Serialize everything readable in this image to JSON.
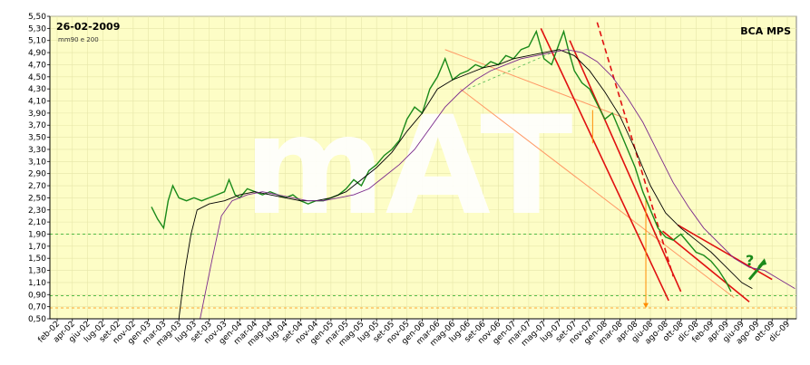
{
  "chart_data": {
    "type": "line",
    "date_label": "26-02-2009",
    "symbol": "BCA MPS",
    "indicator_label": "mm90 e 200",
    "watermark": "mAT",
    "question_mark": "?",
    "ylim": [
      0.5,
      5.5
    ],
    "y_ticks": [
      "0,50",
      "0,70",
      "0,90",
      "1,10",
      "1,30",
      "1,50",
      "1,70",
      "1,90",
      "2,10",
      "2,30",
      "2,50",
      "2,70",
      "2,90",
      "3,10",
      "3,30",
      "3,50",
      "3,70",
      "3,90",
      "4,10",
      "4,30",
      "4,50",
      "4,70",
      "4,90",
      "5,10",
      "5,30",
      "5,50"
    ],
    "x_ticks": [
      "feb-02",
      "apr-02",
      "giu-02",
      "lug-02",
      "set-02",
      "nov-02",
      "gen-03",
      "mar-03",
      "mag-03",
      "lug-03",
      "set-03",
      "nov-03",
      "gen-04",
      "mar-04",
      "mag-04",
      "lug-04",
      "set-04",
      "nov-04",
      "gen-05",
      "mar-05",
      "mag-05",
      "lug-05",
      "set-05",
      "nov-05",
      "gen-06",
      "mar-06",
      "mag-06",
      "lug-06",
      "set-06",
      "nov-06",
      "gen-07",
      "mar-07",
      "mag-07",
      "lug-07",
      "set-07",
      "nov-07",
      "gen-08",
      "mar-08",
      "apr-08",
      "giu-08",
      "ago-08",
      "ott-08",
      "dic-08",
      "feb-09",
      "apr-09",
      "giu-09",
      "ago-09",
      "ott-09",
      "dic-09"
    ],
    "series": [
      {
        "values": [
          [
            6.2,
            2.35
          ],
          [
            6.6,
            2.15
          ],
          [
            7.0,
            2.0
          ],
          [
            7.3,
            2.45
          ],
          [
            7.6,
            2.7
          ],
          [
            8.0,
            2.5
          ],
          [
            8.5,
            2.45
          ],
          [
            9.0,
            2.5
          ],
          [
            9.5,
            2.45
          ],
          [
            10.0,
            2.5
          ],
          [
            10.5,
            2.55
          ],
          [
            11.0,
            2.6
          ],
          [
            11.3,
            2.8
          ],
          [
            11.7,
            2.55
          ],
          [
            12.0,
            2.5
          ],
          [
            12.5,
            2.65
          ],
          [
            13.0,
            2.6
          ],
          [
            13.5,
            2.55
          ],
          [
            14.0,
            2.6
          ],
          [
            14.5,
            2.55
          ],
          [
            15.0,
            2.5
          ],
          [
            15.5,
            2.55
          ],
          [
            16.0,
            2.45
          ],
          [
            16.5,
            2.4
          ],
          [
            17.0,
            2.45
          ],
          [
            17.5,
            2.45
          ],
          [
            18.0,
            2.5
          ],
          [
            18.5,
            2.55
          ],
          [
            19.0,
            2.65
          ],
          [
            19.5,
            2.8
          ],
          [
            20.0,
            2.7
          ],
          [
            20.5,
            2.95
          ],
          [
            21.0,
            3.05
          ],
          [
            21.5,
            3.2
          ],
          [
            22.0,
            3.3
          ],
          [
            22.5,
            3.45
          ],
          [
            23.0,
            3.8
          ],
          [
            23.5,
            4.0
          ],
          [
            24.0,
            3.9
          ],
          [
            24.5,
            4.3
          ],
          [
            25.0,
            4.5
          ],
          [
            25.5,
            4.8
          ],
          [
            26.0,
            4.45
          ],
          [
            26.5,
            4.55
          ],
          [
            27.0,
            4.6
          ],
          [
            27.5,
            4.7
          ],
          [
            28.0,
            4.65
          ],
          [
            28.5,
            4.75
          ],
          [
            29.0,
            4.7
          ],
          [
            29.5,
            4.85
          ],
          [
            30.0,
            4.8
          ],
          [
            30.5,
            4.95
          ],
          [
            31.0,
            5.0
          ],
          [
            31.5,
            5.25
          ],
          [
            32.0,
            4.8
          ],
          [
            32.5,
            4.7
          ],
          [
            33.0,
            5.05
          ],
          [
            33.3,
            5.25
          ],
          [
            33.6,
            4.95
          ],
          [
            34.0,
            4.6
          ],
          [
            34.5,
            4.4
          ],
          [
            35.0,
            4.3
          ],
          [
            35.5,
            4.05
          ],
          [
            36.0,
            3.8
          ],
          [
            36.5,
            3.9
          ],
          [
            37.0,
            3.6
          ],
          [
            37.5,
            3.3
          ],
          [
            38.0,
            3.0
          ],
          [
            38.5,
            2.6
          ],
          [
            39.0,
            2.3
          ],
          [
            39.5,
            2.0
          ],
          [
            40.0,
            1.85
          ],
          [
            40.5,
            1.8
          ],
          [
            41.0,
            1.9
          ],
          [
            41.5,
            1.75
          ],
          [
            42.0,
            1.6
          ],
          [
            42.5,
            1.55
          ],
          [
            43.0,
            1.45
          ],
          [
            43.5,
            1.3
          ],
          [
            44.0,
            1.1
          ],
          [
            44.3,
            0.95
          ]
        ],
        "color": "#1a8a1a"
      },
      {
        "values": [
          [
            8.0,
            0.5
          ],
          [
            8.4,
            1.3
          ],
          [
            8.8,
            1.9
          ],
          [
            9.2,
            2.3
          ],
          [
            10.0,
            2.4
          ],
          [
            11.0,
            2.45
          ],
          [
            12.0,
            2.55
          ],
          [
            13.0,
            2.6
          ],
          [
            14.0,
            2.55
          ],
          [
            15.0,
            2.5
          ],
          [
            16.0,
            2.45
          ],
          [
            17.0,
            2.45
          ],
          [
            18.0,
            2.5
          ],
          [
            19.0,
            2.6
          ],
          [
            20.0,
            2.8
          ],
          [
            21.0,
            3.0
          ],
          [
            22.0,
            3.25
          ],
          [
            23.0,
            3.6
          ],
          [
            24.0,
            3.9
          ],
          [
            25.0,
            4.3
          ],
          [
            26.0,
            4.45
          ],
          [
            27.0,
            4.55
          ],
          [
            28.0,
            4.65
          ],
          [
            29.0,
            4.7
          ],
          [
            30.0,
            4.8
          ],
          [
            31.0,
            4.85
          ],
          [
            32.0,
            4.9
          ],
          [
            33.0,
            4.95
          ],
          [
            34.0,
            4.85
          ],
          [
            35.0,
            4.6
          ],
          [
            36.0,
            4.25
          ],
          [
            37.0,
            3.85
          ],
          [
            38.0,
            3.3
          ],
          [
            39.0,
            2.7
          ],
          [
            40.0,
            2.25
          ],
          [
            41.0,
            2.0
          ],
          [
            42.0,
            1.8
          ],
          [
            43.0,
            1.6
          ],
          [
            44.0,
            1.35
          ],
          [
            45.0,
            1.1
          ],
          [
            45.7,
            1.0
          ]
        ],
        "color": "#000000"
      },
      {
        "values": [
          [
            9.4,
            0.5
          ],
          [
            10.2,
            1.5
          ],
          [
            10.8,
            2.2
          ],
          [
            11.5,
            2.45
          ],
          [
            12.5,
            2.55
          ],
          [
            13.5,
            2.6
          ],
          [
            14.5,
            2.55
          ],
          [
            15.5,
            2.5
          ],
          [
            16.5,
            2.45
          ],
          [
            17.5,
            2.45
          ],
          [
            18.5,
            2.5
          ],
          [
            19.5,
            2.55
          ],
          [
            20.5,
            2.65
          ],
          [
            21.5,
            2.85
          ],
          [
            22.5,
            3.05
          ],
          [
            23.5,
            3.3
          ],
          [
            24.5,
            3.65
          ],
          [
            25.5,
            4.0
          ],
          [
            26.5,
            4.25
          ],
          [
            27.5,
            4.45
          ],
          [
            28.5,
            4.6
          ],
          [
            29.5,
            4.7
          ],
          [
            30.5,
            4.8
          ],
          [
            31.5,
            4.85
          ],
          [
            32.5,
            4.9
          ],
          [
            33.5,
            4.95
          ],
          [
            34.5,
            4.9
          ],
          [
            35.5,
            4.75
          ],
          [
            36.5,
            4.5
          ],
          [
            37.5,
            4.15
          ],
          [
            38.5,
            3.75
          ],
          [
            39.5,
            3.25
          ],
          [
            40.5,
            2.75
          ],
          [
            41.5,
            2.35
          ],
          [
            42.5,
            2.0
          ],
          [
            43.5,
            1.75
          ],
          [
            44.5,
            1.5
          ],
          [
            45.5,
            1.35
          ],
          [
            46.5,
            1.3
          ],
          [
            47.5,
            1.15
          ],
          [
            48.5,
            1.0
          ]
        ],
        "color": "#7b2a8c"
      }
    ]
  }
}
